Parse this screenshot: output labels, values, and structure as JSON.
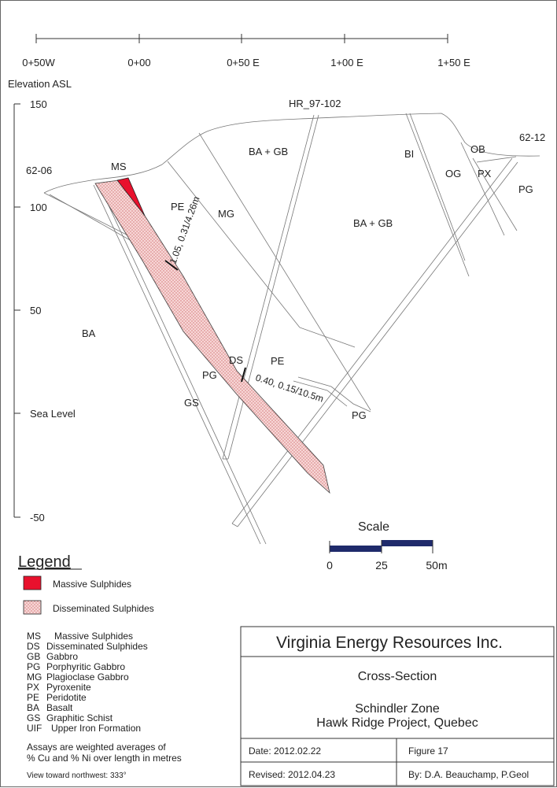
{
  "axis": {
    "ticks": [
      "0+50W",
      "0+00",
      "0+50 E",
      "1+00 E",
      "1+50 E"
    ],
    "elevation_title": "Elevation ASL",
    "elevations": [
      "150",
      "100",
      "50",
      "Sea Level",
      "-50"
    ]
  },
  "drillholes": {
    "center": "HR_97-102",
    "left": "62-06",
    "right": "62-12"
  },
  "units": {
    "ms": "MS",
    "ba_gb_top": "BA + GB",
    "ba_gb_mid": "BA + GB",
    "bi": "BI",
    "ob": "OB",
    "og": "OG",
    "px": "PX",
    "pg_right": "PG",
    "pe_upper": "PE",
    "mg": "MG",
    "ba_left": "BA",
    "pg_lower": "PG",
    "ds": "DS",
    "pe_lower": "PE",
    "gs": "GS",
    "pg_bottom": "PG"
  },
  "intercepts": {
    "upper": "1.05, 0.31/4.26m",
    "lower": "0.40, 0.15/10.5m"
  },
  "scale": {
    "title": "Scale",
    "labels": [
      "0",
      "25",
      "50m"
    ],
    "bar_color": "#1f2a6b"
  },
  "legend": {
    "title": "Legend",
    "massive": "Massive Sulphides",
    "disseminated": "Disseminated Sulphides",
    "massive_color": "#e8112d",
    "disseminated_color": "#f2b8b8"
  },
  "abbreviations": [
    {
      "code": "MS",
      "name": "Massive Sulphides"
    },
    {
      "code": "DS",
      "name": "Disseminated Sulphides"
    },
    {
      "code": "GB",
      "name": "Gabbro"
    },
    {
      "code": "PG",
      "name": "Porphyritic Gabbro"
    },
    {
      "code": "MG",
      "name": "Plagioclase Gabbro"
    },
    {
      "code": "PX",
      "name": "Pyroxenite"
    },
    {
      "code": "PE",
      "name": "Peridotite"
    },
    {
      "code": "BA",
      "name": "Basalt"
    },
    {
      "code": "GS",
      "name": "Graphitic Schist"
    },
    {
      "code": "UIF",
      "name": "Upper Iron Formation"
    }
  ],
  "notes": {
    "assays_line1": "Assays are weighted averages of",
    "assays_line2": "% Cu and % Ni over length in metres",
    "view": "View toward northwest: 333°"
  },
  "titleblock": {
    "company": "Virginia Energy Resources Inc.",
    "doc_type": "Cross-Section",
    "zone": "Schindler Zone",
    "project": "Hawk Ridge Project, Quebec",
    "date": "Date: 2012.02.22",
    "figure": "Figure 17",
    "revised": "Revised: 2012.04.23",
    "author": "By: D.A. Beauchamp, P.Geol"
  }
}
